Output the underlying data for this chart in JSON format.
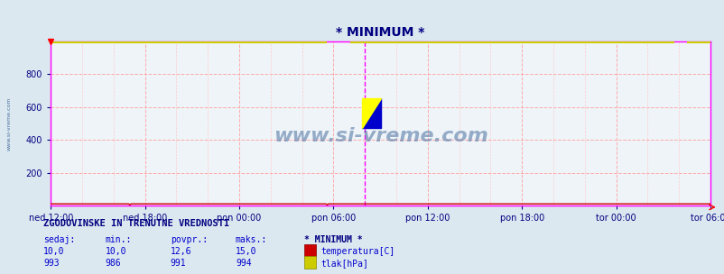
{
  "title": "* MINIMUM *",
  "bg_color": "#dce8f0",
  "plot_bg_color": "#eef4f8",
  "grid_color_minor": "#ffcccc",
  "grid_color_major": "#ffaaaa",
  "ylim": [
    0,
    1000
  ],
  "yticks": [
    200,
    400,
    600,
    800
  ],
  "xtick_labels": [
    "ned 12:00",
    "ned 18:00",
    "pon 00:00",
    "pon 06:00",
    "pon 12:00",
    "pon 18:00",
    "tor 00:00",
    "tor 06:00"
  ],
  "tick_hours": [
    0,
    6,
    12,
    18,
    24,
    30,
    36,
    42
  ],
  "total_hours": 42.0,
  "vline_hour": 20.0,
  "n_points": 576,
  "temp_value": 10.0,
  "tlak_value": 993.0,
  "temp_color": "#cc0000",
  "tlak_color": "#cccc00",
  "watermark": "www.si-vreme.com",
  "watermark_color": "#4a6fa0",
  "side_text": "www.si-vreme.com",
  "border_color": "#ff00ff",
  "title_color": "#000080",
  "tick_color": "#000080",
  "legend_title": "* MINIMUM *",
  "stats_title": "ZGODOVINSKE IN TRENUTNE VREDNOSTI",
  "col_headers": [
    "sedaj:",
    "min.:",
    "povpr.:",
    "maks.:"
  ],
  "row1": [
    "10,0",
    "10,0",
    "12,6",
    "15,0"
  ],
  "row2": [
    "993",
    "986",
    "991",
    "994"
  ],
  "label1": "temperatura[C]",
  "label2": "tlak[hPa]",
  "text_color_blue": "#0000cc",
  "text_color_dark": "#000080"
}
